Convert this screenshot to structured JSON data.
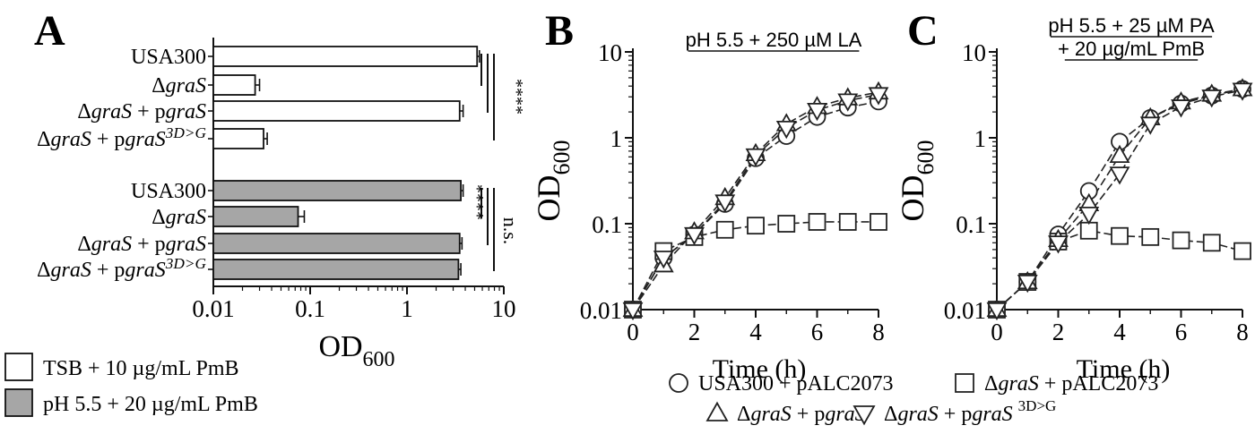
{
  "chart_data": [
    {
      "panel": "A",
      "type": "bar",
      "orientation": "horizontal",
      "xscale": "log",
      "xlim": [
        0.01,
        10
      ],
      "xticks": [
        "0.01",
        "0.1",
        "1",
        "10"
      ],
      "xlabel": "OD",
      "xlabel_sub": "600",
      "groups": [
        {
          "condition": "TSB + 10 µg/mL PmB",
          "fill": "#ffffff",
          "significance": "****",
          "bars": [
            {
              "label": "USA300",
              "value": 5.3,
              "error": 0.3
            },
            {
              "label": "ΔgraS",
              "value": 0.027,
              "error": 0.003
            },
            {
              "label": "ΔgraS + pgraS",
              "value": 3.5,
              "error": 0.3
            },
            {
              "label": "ΔgraS + pgraS^3D>G",
              "value": 0.033,
              "error": 0.003
            }
          ]
        },
        {
          "condition": "pH 5.5 + 20 µg/mL PmB",
          "fill": "#a6a6a6",
          "significance": "****",
          "significance2": "n.s.",
          "bars": [
            {
              "label": "USA300",
              "value": 3.6,
              "error": 0.2
            },
            {
              "label": "ΔgraS",
              "value": 0.075,
              "error": 0.012
            },
            {
              "label": "ΔgraS + pgraS",
              "value": 3.5,
              "error": 0.2
            },
            {
              "label": "ΔgraS + pgraS^3D>G",
              "value": 3.4,
              "error": 0.2
            }
          ]
        }
      ],
      "legend": [
        {
          "label": "TSB + 10 µg/mL PmB",
          "fill": "#ffffff"
        },
        {
          "label": "pH 5.5 + 20 µg/mL PmB",
          "fill": "#a6a6a6"
        }
      ]
    },
    {
      "panel": "B",
      "type": "line",
      "title": "pH 5.5 + 250 µM LA",
      "yscale": "log",
      "ylim": [
        0.01,
        10
      ],
      "yticks": [
        "0.01",
        "0.1",
        "1",
        "10"
      ],
      "xlim": [
        0,
        8
      ],
      "xticks": [
        "0",
        "2",
        "4",
        "6",
        "8"
      ],
      "xlabel": "Time (h)",
      "ylabel": "OD",
      "ylabel_sub": "600",
      "series": [
        {
          "name": "USA300 + pALC2073",
          "marker": "circle",
          "x": [
            0,
            1,
            2,
            3,
            4,
            5,
            6,
            7,
            8
          ],
          "y": [
            0.01,
            0.04,
            0.075,
            0.17,
            0.58,
            1.05,
            1.75,
            2.25,
            2.65
          ]
        },
        {
          "name": "ΔgraS + pALC2073",
          "marker": "square",
          "x": [
            0,
            1,
            2,
            3,
            4,
            5,
            6,
            7,
            8
          ],
          "y": [
            0.01,
            0.048,
            0.07,
            0.085,
            0.095,
            0.1,
            0.105,
            0.105,
            0.105
          ]
        },
        {
          "name": "ΔgraS + pgraS",
          "marker": "triangle-up",
          "x": [
            0,
            1,
            2,
            3,
            4,
            5,
            6,
            7,
            8
          ],
          "y": [
            0.01,
            0.033,
            0.08,
            0.2,
            0.65,
            1.45,
            2.3,
            2.9,
            3.4
          ]
        },
        {
          "name": "ΔgraS + pgraS 3D>G",
          "marker": "triangle-down",
          "x": [
            0,
            1,
            2,
            3,
            4,
            5,
            6,
            7,
            8
          ],
          "y": [
            0.01,
            0.04,
            0.075,
            0.18,
            0.62,
            1.3,
            2.1,
            2.7,
            3.2
          ]
        }
      ]
    },
    {
      "panel": "C",
      "type": "line",
      "title": "pH 5.5 + 25 µM PA",
      "title2": "+ 20 µg/mL PmB",
      "yscale": "log",
      "ylim": [
        0.01,
        10
      ],
      "yticks": [
        "0.01",
        "0.1",
        "1",
        "10"
      ],
      "xlim": [
        0,
        8
      ],
      "xticks": [
        "0",
        "2",
        "4",
        "6",
        "8"
      ],
      "xlabel": "Time (h)",
      "ylabel": "OD",
      "ylabel_sub": "600",
      "series": [
        {
          "name": "USA300 + pALC2073",
          "marker": "circle",
          "x": [
            0,
            1,
            2,
            3,
            4,
            5,
            6,
            7,
            8
          ],
          "y": [
            0.01,
            0.021,
            0.075,
            0.24,
            0.9,
            1.7,
            2.5,
            3.1,
            3.7
          ]
        },
        {
          "name": "ΔgraS + pALC2073",
          "marker": "square",
          "x": [
            0,
            1,
            2,
            3,
            4,
            5,
            6,
            7,
            8
          ],
          "y": [
            0.01,
            0.021,
            0.062,
            0.083,
            0.072,
            0.07,
            0.064,
            0.06,
            0.048
          ]
        },
        {
          "name": "ΔgraS + pgraS",
          "marker": "triangle-up",
          "x": [
            0,
            1,
            2,
            3,
            4,
            5,
            6,
            7,
            8
          ],
          "y": [
            0.01,
            0.021,
            0.065,
            0.17,
            0.62,
            1.7,
            2.6,
            3.2,
            3.7
          ]
        },
        {
          "name": "ΔgraS + pgraS 3D>G",
          "marker": "triangle-down",
          "x": [
            0,
            1,
            2,
            3,
            4,
            5,
            6,
            7,
            8
          ],
          "y": [
            0.01,
            0.021,
            0.06,
            0.13,
            0.38,
            1.45,
            2.3,
            3.0,
            3.6
          ]
        }
      ]
    }
  ],
  "panel_letters": {
    "a": "A",
    "b": "B",
    "c": "C"
  },
  "bottom_legend": [
    {
      "marker": "circle",
      "parts": [
        [
          "USA300 + pALC2073",
          false
        ]
      ]
    },
    {
      "marker": "square",
      "parts": [
        [
          "Δ",
          false
        ],
        [
          "graS",
          true
        ],
        [
          " + pALC2073",
          false
        ]
      ]
    },
    {
      "marker": "triangle-up",
      "parts": [
        [
          "Δ",
          false
        ],
        [
          "graS",
          true
        ],
        [
          " + p",
          false
        ],
        [
          "graS",
          true
        ]
      ]
    },
    {
      "marker": "triangle-down",
      "parts": [
        [
          "Δ",
          false
        ],
        [
          "graS",
          true
        ],
        [
          " + p",
          false
        ],
        [
          "graS",
          true
        ]
      ],
      "superscript": "3D>G"
    }
  ]
}
